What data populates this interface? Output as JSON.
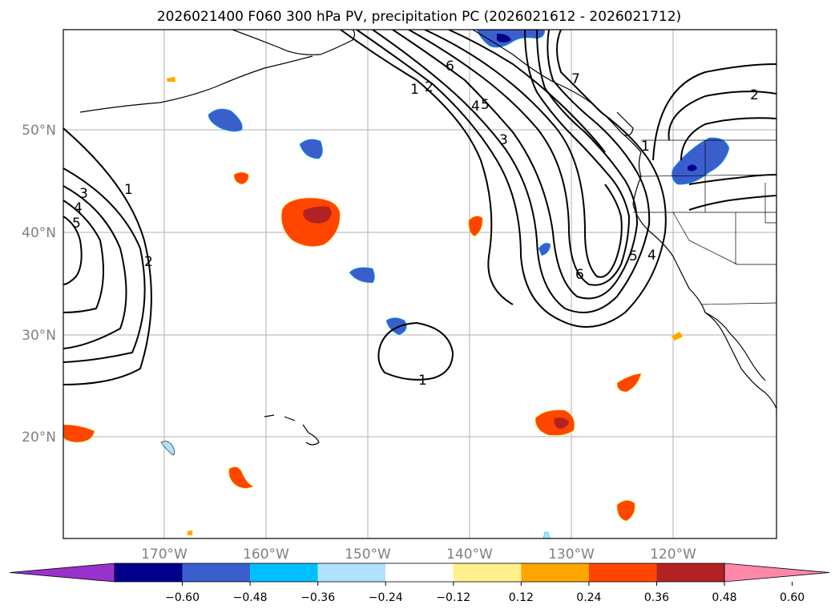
{
  "title": "2026021400 F060 300 hPa PV, precipitation PC (2026021612 - 2026021712)",
  "map": {
    "lon_ticks": [
      "170°W",
      "160°W",
      "150°W",
      "140°W",
      "130°W",
      "120°W"
    ],
    "lat_ticks": [
      "50°N",
      "40°N",
      "30°N",
      "20°N"
    ],
    "contour_labels": [
      "1",
      "2",
      "3",
      "4",
      "5",
      "1",
      "2",
      "4",
      "5",
      "6",
      "3",
      "5",
      "6",
      "7",
      "4",
      "2",
      "1"
    ]
  },
  "colorbar": {
    "ticks": [
      "−0.60",
      "−0.48",
      "−0.36",
      "−0.24",
      "−0.12",
      "0.12",
      "0.24",
      "0.36",
      "0.48",
      "0.60"
    ],
    "colors": [
      "#9932cc",
      "#00008b",
      "#3a5fcd",
      "#00bfff",
      "#b0e2ff",
      "#ffffff",
      "#fff08c",
      "#ffa500",
      "#ff4500",
      "#b22222",
      "#ff88aa"
    ]
  }
}
